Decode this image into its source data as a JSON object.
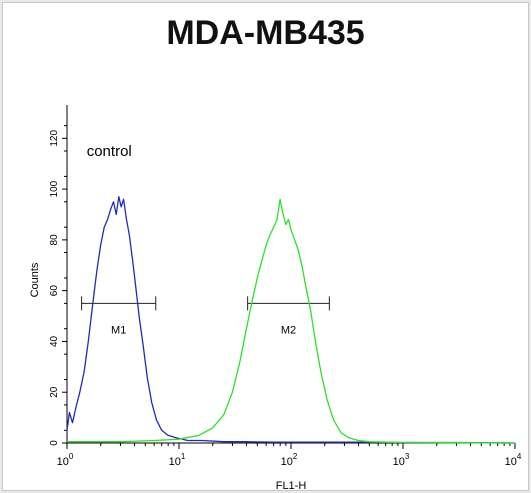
{
  "chart_data": {
    "type": "line",
    "title": "MDA-MB435",
    "xlabel": "FL1-H",
    "ylabel": "Counts",
    "x_scale": "log",
    "xlim": [
      1,
      10000
    ],
    "ylim": [
      0,
      128
    ],
    "grid": false,
    "legend": "none",
    "x_ticks": [
      {
        "value": 1,
        "base": "10",
        "exp": "0"
      },
      {
        "value": 10,
        "base": "10",
        "exp": "1"
      },
      {
        "value": 100,
        "base": "10",
        "exp": "2"
      },
      {
        "value": 1000,
        "base": "10",
        "exp": "3"
      },
      {
        "value": 10000,
        "base": "10",
        "exp": "4"
      }
    ],
    "y_ticks": [
      0,
      20,
      40,
      60,
      80,
      100,
      120
    ],
    "annotations": [
      {
        "text": "control",
        "x": 1.5,
        "y": 113
      }
    ],
    "gates": [
      {
        "label": "M1",
        "x_start": 1.35,
        "x_end": 6.2,
        "y": 55
      },
      {
        "label": "M2",
        "x_start": 41,
        "x_end": 220,
        "y": 55
      }
    ],
    "series": [
      {
        "color": "#1f2bb5",
        "x": [
          1,
          1.05,
          1.12,
          1.2,
          1.3,
          1.42,
          1.55,
          1.7,
          1.85,
          2.0,
          2.15,
          2.3,
          2.45,
          2.6,
          2.75,
          2.9,
          3.05,
          3.2,
          3.4,
          3.6,
          3.85,
          4.1,
          4.4,
          4.8,
          5.2,
          5.7,
          6.3,
          7.0,
          8.0,
          9.5,
          12,
          16,
          25,
          40,
          70,
          150,
          400,
          1000,
          3000,
          10000
        ],
        "y": [
          5,
          12,
          8,
          14,
          20,
          28,
          40,
          55,
          68,
          78,
          85,
          88,
          92,
          95,
          90,
          97,
          93,
          96,
          88,
          82,
          72,
          62,
          50,
          38,
          26,
          16,
          9,
          5,
          3,
          2,
          1,
          1,
          0.5,
          0.5,
          0.3,
          0.3,
          0.3,
          0.2,
          0.2,
          0
        ]
      },
      {
        "color": "#2ee02a",
        "x": [
          1,
          3,
          6,
          10,
          15,
          20,
          25,
          30,
          35,
          40,
          45,
          50,
          55,
          60,
          65,
          70,
          75,
          80,
          85,
          90,
          95,
          100,
          108,
          116,
          125,
          135,
          150,
          165,
          185,
          210,
          240,
          280,
          330,
          400,
          500,
          700,
          1000,
          3000,
          10000
        ],
        "y": [
          0.5,
          0.5,
          1,
          1.5,
          3,
          6,
          11,
          20,
          32,
          45,
          56,
          65,
          72,
          78,
          82,
          85,
          88,
          96,
          90,
          86,
          88,
          84,
          80,
          76,
          70,
          62,
          52,
          40,
          28,
          17,
          9,
          4,
          2,
          1,
          0.5,
          0.3,
          0.2,
          0.1,
          0
        ]
      }
    ]
  }
}
